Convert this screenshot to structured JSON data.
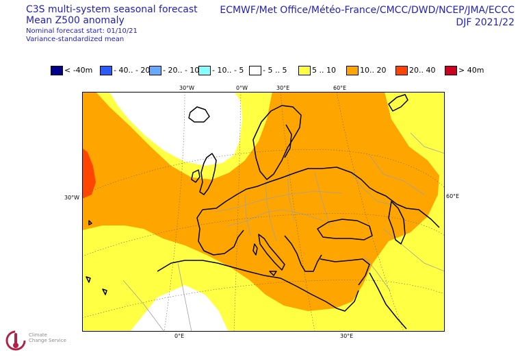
{
  "header": {
    "title_line1": "C3S multi-system seasonal forecast",
    "title_line2": "Mean Z500 anomaly",
    "forecast_start": "Nominal forecast start: 01/10/21",
    "method": "Variance-standardized mean",
    "centres": "ECMWF/Met Office/Météo-France/CMCC/DWD/NCEP/JMA/ECCC",
    "season": "DJF 2021/22"
  },
  "legend": {
    "items": [
      {
        "label": "< -40m",
        "color": "#00008b"
      },
      {
        "label": "- 40.. - 20",
        "color": "#2a5bff"
      },
      {
        "label": "- 20.. - 10",
        "color": "#66aaff"
      },
      {
        "label": "- 10.. - 5",
        "color": "#88ffff"
      },
      {
        "label": "- 5 .. 5",
        "color": "#ffffff"
      },
      {
        "label": "5 .. 10",
        "color": "#ffff44"
      },
      {
        "label": "10.. 20",
        "color": "#ffa500"
      },
      {
        "label": "20.. 40",
        "color": "#ff4500"
      },
      {
        "label": "> 40m",
        "color": "#cc0022"
      }
    ]
  },
  "map": {
    "ticks": {
      "top": [
        "30°W",
        "0°W",
        "30°E",
        "60°E"
      ],
      "left": [
        "30°W"
      ],
      "right": [
        "60°E"
      ],
      "bottom": [
        "0°E",
        "30°E"
      ]
    },
    "colors": {
      "coast": "#000000",
      "border": "#a0a0a0",
      "grid": "#666666"
    }
  },
  "logo": {
    "line1": "Climate",
    "line2": "Change Service"
  }
}
